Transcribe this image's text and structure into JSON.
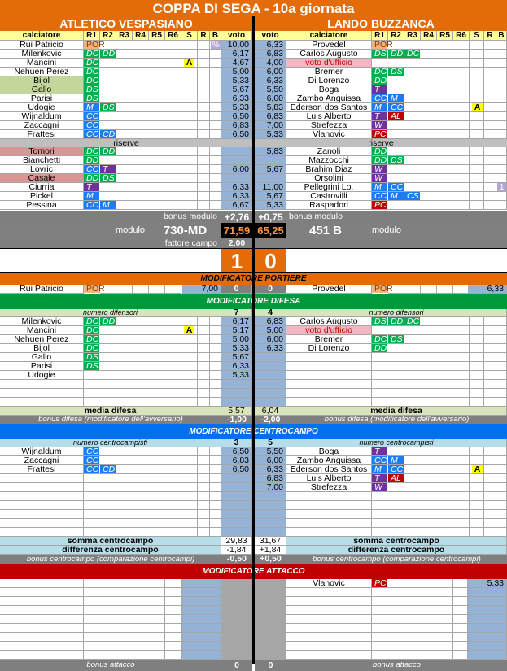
{
  "title": "COPPA DI SEGA - 10a giornata",
  "role_colors": {
    "POR": "#f4b183",
    "DC": "#00b050",
    "DD": "#00b050",
    "DS": "#00b050",
    "M": "#1f7bf2",
    "CC": "#1f7bf2",
    "CD": "#1f7bf2",
    "CS": "#1f7bf2",
    "T": "#7030a0",
    "W": "#7030a0",
    "PC": "#c00000",
    "AL": "#c00000"
  },
  "colors": {
    "orange": "#e36c09",
    "difesa": "#009a3c",
    "centrocampo": "#0070f0",
    "attacco": "#c00000",
    "voto": "#95b3d7"
  },
  "headers": {
    "calciatore": "calciatore",
    "r": [
      "R1",
      "R2",
      "R3",
      "R4",
      "R5",
      "R6"
    ],
    "s": "S",
    "rr": "R",
    "b": "B",
    "voto": "voto"
  },
  "labels": {
    "riserve": "riserve",
    "bonus_modulo": "bonus modulo",
    "modulo": "modulo",
    "fattore_campo": "fattore campo"
  },
  "home": {
    "name": "ATLETICO VESPASIANO",
    "starters": [
      {
        "name": "Rui Patricio",
        "roles": [
          "POR"
        ],
        "s": "",
        "b": "%",
        "voto": "10,00"
      },
      {
        "name": "Milenkovic",
        "roles": [
          "DC",
          "DD"
        ],
        "s": "",
        "b": "",
        "voto": "6,17"
      },
      {
        "name": "Mancini",
        "roles": [
          "DC"
        ],
        "s": "A",
        "b": "",
        "voto": "4,67"
      },
      {
        "name": "Nehuen Perez",
        "roles": [
          "DC"
        ],
        "s": "",
        "b": "",
        "voto": "5,00"
      },
      {
        "name": "Bijol",
        "roles": [
          "DC"
        ],
        "s": "",
        "b": "",
        "voto": "5,33",
        "hl": "green"
      },
      {
        "name": "Gallo",
        "roles": [
          "DS"
        ],
        "s": "",
        "b": "",
        "voto": "5,67",
        "hl": "green"
      },
      {
        "name": "Parisi",
        "roles": [
          "DS"
        ],
        "s": "",
        "b": "",
        "voto": "6,33"
      },
      {
        "name": "Udogie",
        "roles": [
          "M",
          "DS"
        ],
        "s": "",
        "b": "",
        "voto": "5,33"
      },
      {
        "name": "Wijnaldum",
        "roles": [
          "CC"
        ],
        "s": "",
        "b": "",
        "voto": "6,50"
      },
      {
        "name": "Zaccagni",
        "roles": [
          "CC"
        ],
        "s": "",
        "b": "",
        "voto": "6,83"
      },
      {
        "name": "Frattesi",
        "roles": [
          "CC",
          "CD"
        ],
        "s": "",
        "b": "",
        "voto": "6,50"
      }
    ],
    "reserves": [
      {
        "name": "Tomori",
        "roles": [
          "DC",
          "DD"
        ],
        "s": "",
        "b": "",
        "voto": "",
        "hl": "pink"
      },
      {
        "name": "Bianchetti",
        "roles": [
          "DD"
        ],
        "s": "",
        "b": "",
        "voto": ""
      },
      {
        "name": "Lovric",
        "roles": [
          "CC",
          "T"
        ],
        "s": "",
        "b": "",
        "voto": "6,00"
      },
      {
        "name": "Casale",
        "roles": [
          "DD",
          "DS"
        ],
        "s": "",
        "b": "",
        "voto": "",
        "hl": "pink"
      },
      {
        "name": "Ciurria",
        "roles": [
          "T"
        ],
        "s": "",
        "b": "",
        "voto": "6,33"
      },
      {
        "name": "Pickel",
        "roles": [
          "M"
        ],
        "s": "",
        "b": "",
        "voto": "6,33"
      },
      {
        "name": "Pessina",
        "roles": [
          "CC",
          "M"
        ],
        "s": "",
        "b": "",
        "voto": "6,67"
      }
    ],
    "bonus_modulo": "+2,76",
    "modulo": "730-MD",
    "total": "71,59",
    "fattore_campo": "2,00",
    "score": "1"
  },
  "away": {
    "name": "LANDO BUZZANCA",
    "starters": [
      {
        "name": "Provedel",
        "roles": [
          "POR"
        ],
        "s": "",
        "b": "",
        "voto": "6,33"
      },
      {
        "name": "Carlos Augusto",
        "roles": [
          "DS",
          "DD",
          "DC"
        ],
        "s": "",
        "b": "",
        "voto": "6,83"
      },
      {
        "name": "voto d'ufficio",
        "roles": [],
        "s": "",
        "b": "",
        "voto": "4,00",
        "hl": "ufficio"
      },
      {
        "name": "Bremer",
        "roles": [
          "DC",
          "DS"
        ],
        "s": "",
        "b": "",
        "voto": "6,00"
      },
      {
        "name": "Di Lorenzo",
        "roles": [
          "DD"
        ],
        "s": "",
        "b": "",
        "voto": "6,33"
      },
      {
        "name": "Boga",
        "roles": [
          "T"
        ],
        "s": "",
        "b": "",
        "voto": "5,50"
      },
      {
        "name": "Zambo Anguissa",
        "roles": [
          "CC",
          "M"
        ],
        "s": "",
        "b": "",
        "voto": "6,00"
      },
      {
        "name": "Ederson dos Santos",
        "roles": [
          "M",
          "CC"
        ],
        "s": "A",
        "b": "",
        "voto": "5,83"
      },
      {
        "name": "Luis Alberto",
        "roles": [
          "T",
          "AL"
        ],
        "s": "",
        "b": "",
        "voto": "6,83"
      },
      {
        "name": "Strefezza",
        "roles": [
          "W"
        ],
        "s": "",
        "b": "",
        "voto": "7,00"
      },
      {
        "name": "Vlahovic",
        "roles": [
          "PC"
        ],
        "s": "",
        "b": "",
        "voto": "5,33"
      }
    ],
    "reserves": [
      {
        "name": "Zanoli",
        "roles": [
          "DD"
        ],
        "s": "",
        "b": "",
        "voto": "5,83"
      },
      {
        "name": "Mazzocchi",
        "roles": [
          "DD",
          "DS"
        ],
        "s": "",
        "b": "",
        "voto": ""
      },
      {
        "name": "Brahim Diaz",
        "roles": [
          "W"
        ],
        "s": "",
        "b": "",
        "voto": "5,67"
      },
      {
        "name": "Orsolini",
        "roles": [
          "W"
        ],
        "s": "",
        "b": "",
        "voto": ""
      },
      {
        "name": "Pellegrini Lo.",
        "roles": [
          "M",
          "CC"
        ],
        "s": "",
        "b": "1",
        "voto": "11,00"
      },
      {
        "name": "Castrovilli",
        "roles": [
          "CC",
          "M",
          "CS"
        ],
        "s": "",
        "b": "",
        "voto": "5,67"
      },
      {
        "name": "Raspadori",
        "roles": [
          "PC"
        ],
        "s": "",
        "b": "",
        "voto": "5,33"
      }
    ],
    "bonus_modulo": "+0,75",
    "modulo": "451 B",
    "total": "65,25",
    "score": "0"
  },
  "portiere": {
    "title": "MODIFICATORE PORTIERE",
    "home": {
      "name": "Rui Patricio",
      "role": "POR",
      "voto": "7,00",
      "mod": "0"
    },
    "away": {
      "name": "Provedel",
      "role": "POR",
      "voto": "6,33",
      "mod": "0"
    }
  },
  "difesa": {
    "title": "MODIFICATORE DIFESA",
    "count_label": "numero difensori",
    "media_label": "media difesa",
    "bonus_label": "bonus difesa (modificatore dell'avversario)",
    "home": {
      "count": "7",
      "media": "5,57",
      "bonus": "-1,00",
      "rows": [
        {
          "name": "Milenkovic",
          "roles": [
            "DC",
            "DD"
          ],
          "s": "",
          "voto": "6,17"
        },
        {
          "name": "Mancini",
          "roles": [
            "DC"
          ],
          "s": "A",
          "voto": "5,17"
        },
        {
          "name": "Nehuen Perez",
          "roles": [
            "DC"
          ],
          "s": "",
          "voto": "5,00"
        },
        {
          "name": "Bijol",
          "roles": [
            "DC"
          ],
          "s": "",
          "voto": "5,33"
        },
        {
          "name": "Gallo",
          "roles": [
            "DS"
          ],
          "s": "",
          "voto": "5,67"
        },
        {
          "name": "Parisi",
          "roles": [
            "DS"
          ],
          "s": "",
          "voto": "6,33"
        },
        {
          "name": "Udogie",
          "roles": [],
          "s": "",
          "voto": "5,33"
        }
      ]
    },
    "away": {
      "count": "4",
      "media": "6,04",
      "bonus": "-2,00",
      "rows": [
        {
          "name": "Carlos Augusto",
          "roles": [
            "DS",
            "DD",
            "DC"
          ],
          "s": "",
          "voto": "6,83"
        },
        {
          "name": "voto d'ufficio",
          "roles": [],
          "s": "",
          "voto": "5,00",
          "hl": "ufficio"
        },
        {
          "name": "Bremer",
          "roles": [
            "DC",
            "DS"
          ],
          "s": "",
          "voto": "6,00"
        },
        {
          "name": "Di Lorenzo",
          "roles": [
            "DD"
          ],
          "s": "",
          "voto": "6,33"
        }
      ]
    }
  },
  "centrocampo": {
    "title": "MODIFICATORE CENTROCAMPO",
    "count_label": "numero centrocampisti",
    "somma_label": "somma centrocampo",
    "diff_label": "differenza centrocampo",
    "bonus_label": "bonus centrocampo (comparazione centrocampi)",
    "home": {
      "count": "3",
      "somma": "29,83",
      "diff": "-1,84",
      "bonus": "-0,50",
      "rows": [
        {
          "name": "Wijnaldum",
          "roles": [
            "CC"
          ],
          "s": "",
          "voto": "6,50"
        },
        {
          "name": "Zaccagni",
          "roles": [
            "CC"
          ],
          "s": "",
          "voto": "6,83"
        },
        {
          "name": "Frattesi",
          "roles": [
            "CC",
            "CD"
          ],
          "s": "",
          "voto": "6,50"
        }
      ]
    },
    "away": {
      "count": "5",
      "somma": "31,67",
      "diff": "+1,84",
      "bonus": "+0,50",
      "rows": [
        {
          "name": "Boga",
          "roles": [
            "T"
          ],
          "s": "",
          "voto": "5,50"
        },
        {
          "name": "Zambo Anguissa",
          "roles": [
            "CC",
            "M"
          ],
          "s": "",
          "voto": "6,00"
        },
        {
          "name": "Ederson dos Santos",
          "roles": [
            "M",
            "CC"
          ],
          "s": "A",
          "voto": "6,33"
        },
        {
          "name": "Luis Alberto",
          "roles": [
            "T",
            "AL"
          ],
          "s": "",
          "voto": "6,83"
        },
        {
          "name": "Strefezza",
          "roles": [
            "W"
          ],
          "s": "",
          "voto": "7,00"
        }
      ]
    }
  },
  "attacco": {
    "title": "MODIFICATORE ATTACCO",
    "bonus_label": "bonus attacco",
    "home": {
      "bonus": "0",
      "rows": []
    },
    "away": {
      "bonus": "0",
      "rows": [
        {
          "name": "Vlahovic",
          "roles": [
            "PC"
          ],
          "voto": "5,33"
        }
      ]
    }
  }
}
